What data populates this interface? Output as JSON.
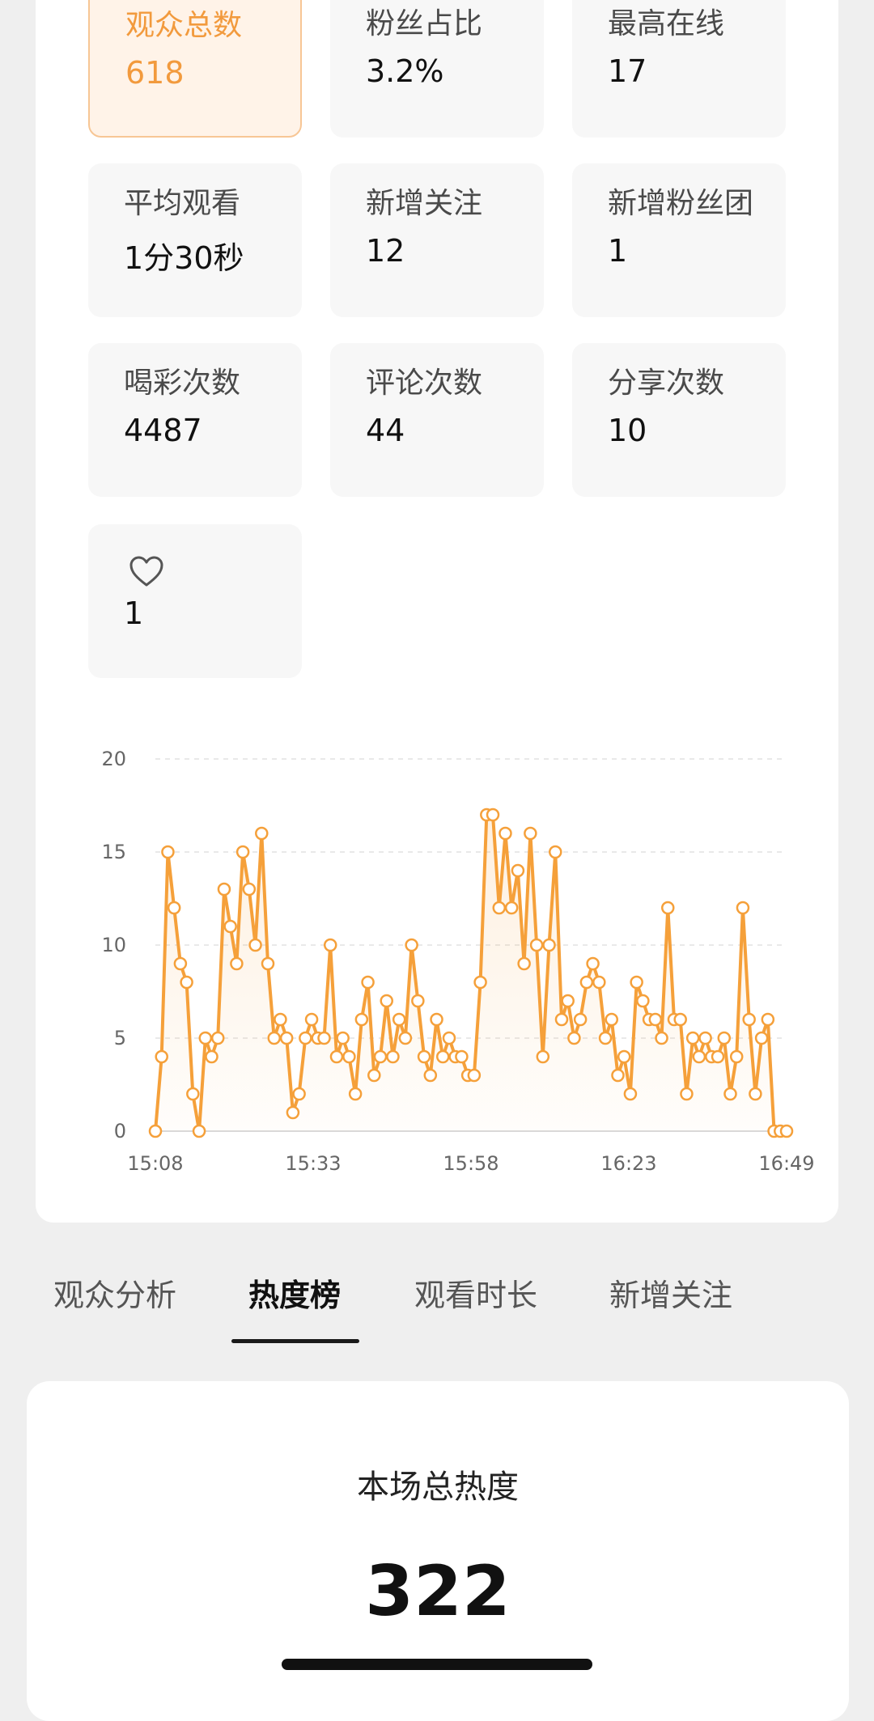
{
  "stats": [
    {
      "label": "观众总数",
      "value": "618",
      "active": true
    },
    {
      "label": "粉丝占比",
      "value": "3.2%"
    },
    {
      "label": "最高在线",
      "value": "17"
    },
    {
      "label": "平均观看",
      "value": "1分30秒"
    },
    {
      "label": "新增关注",
      "value": "12"
    },
    {
      "label": "新增粉丝团",
      "value": "1"
    },
    {
      "label": "喝彩次数",
      "value": "4487"
    },
    {
      "label": "评论次数",
      "value": "44"
    },
    {
      "label": "分享次数",
      "value": "10"
    },
    {
      "icon": "heart-outline-icon",
      "value": "1"
    }
  ],
  "chart_data": {
    "type": "area",
    "ylim": [
      0,
      20
    ],
    "y_ticks": [
      "0",
      "5",
      "10",
      "15",
      "20"
    ],
    "x_ticks": [
      "15:08",
      "15:33",
      "15:58",
      "16:23",
      "16:49"
    ],
    "grid": "horizontal dashed",
    "color": "#f5a03a",
    "values": [
      0,
      4,
      15,
      12,
      9,
      8,
      2,
      0,
      5,
      4,
      5,
      13,
      11,
      9,
      15,
      13,
      10,
      16,
      9,
      5,
      6,
      5,
      1,
      2,
      5,
      6,
      5,
      5,
      10,
      4,
      5,
      4,
      2,
      6,
      8,
      3,
      4,
      7,
      4,
      6,
      5,
      10,
      7,
      4,
      3,
      6,
      4,
      5,
      4,
      4,
      3,
      3,
      8,
      17,
      17,
      12,
      16,
      12,
      14,
      9,
      16,
      10,
      4,
      10,
      15,
      6,
      7,
      5,
      6,
      8,
      9,
      8,
      5,
      6,
      3,
      4,
      2,
      8,
      7,
      6,
      6,
      5,
      12,
      6,
      6,
      2,
      5,
      4,
      5,
      4,
      4,
      5,
      2,
      4,
      12,
      6,
      2,
      5,
      6,
      0,
      0,
      0
    ]
  },
  "tabs": [
    {
      "label": "观众分析",
      "active": false
    },
    {
      "label": "热度榜",
      "active": true
    },
    {
      "label": "观看时长",
      "active": false
    },
    {
      "label": "新增关注",
      "active": false
    }
  ],
  "heat": {
    "title": "本场总热度",
    "value": "322"
  },
  "colors": {
    "accent": "#f29a3d",
    "active_tile_bg": "#fff3e8",
    "line": "#f5a03a"
  }
}
